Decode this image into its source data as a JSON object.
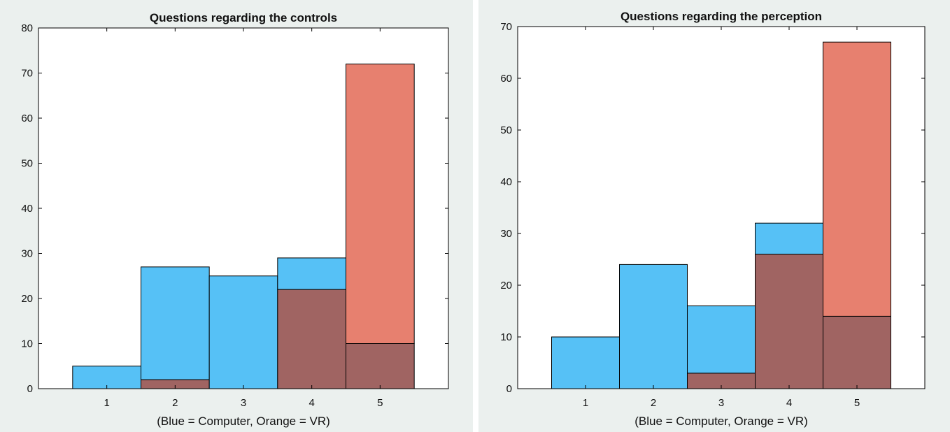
{
  "colors": {
    "computer": "#56c1f6",
    "vr": "#e7806f",
    "overlap": "#a06462",
    "axes": "#000000",
    "panel_bg": "#ebf0ee"
  },
  "chart_data": [
    {
      "type": "bar",
      "title": "Questions regarding the controls",
      "xlabel": "(Blue = Computer, Orange = VR)",
      "ylabel": "",
      "categories": [
        "1",
        "2",
        "3",
        "4",
        "5"
      ],
      "series": [
        {
          "values": [
            5,
            27,
            25,
            29,
            10
          ]
        },
        {
          "values": [
            0,
            2,
            0,
            22,
            72
          ]
        }
      ],
      "ylim": [
        0,
        80
      ],
      "yticks": [
        0,
        10,
        20,
        30,
        40,
        50,
        60,
        70,
        80
      ],
      "grid": false,
      "overlay": true
    },
    {
      "type": "bar",
      "title": "Questions regarding the perception",
      "xlabel": "(Blue = Computer, Orange = VR)",
      "ylabel": "",
      "categories": [
        "1",
        "2",
        "3",
        "4",
        "5"
      ],
      "series": [
        {
          "values": [
            10,
            24,
            16,
            32,
            14
          ]
        },
        {
          "values": [
            0,
            0,
            3,
            26,
            67
          ]
        }
      ],
      "ylim": [
        0,
        70
      ],
      "yticks": [
        0,
        10,
        20,
        30,
        40,
        50,
        60,
        70
      ],
      "grid": false,
      "overlay": true
    }
  ]
}
